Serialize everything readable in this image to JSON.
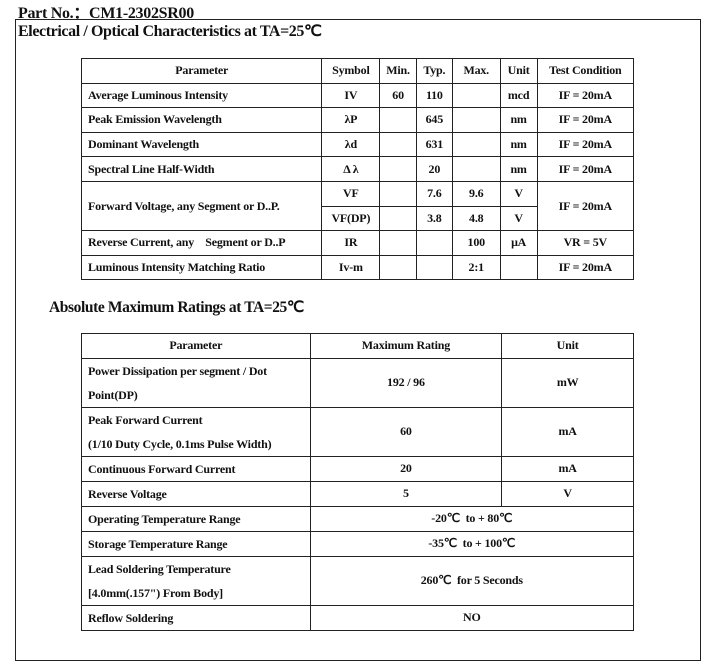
{
  "part_no": "Part No.：CM1-2302SR00",
  "electrical": {
    "title": "Electrical / Optical Characteristics at TA=25℃",
    "headers": [
      "Parameter",
      "Symbol",
      "Min.",
      "Typ.",
      "Max.",
      "Unit",
      "Test Condition"
    ],
    "rows": [
      {
        "parameter": "Average Luminous Intensity",
        "symbol": "IV",
        "min": "60",
        "typ": "110",
        "max": "",
        "unit": "mcd",
        "condition": "IF = 20mA"
      },
      {
        "parameter": "Peak Emission Wavelength",
        "symbol": "λP",
        "min": "",
        "typ": "645",
        "max": "",
        "unit": "nm",
        "condition": "IF = 20mA"
      },
      {
        "parameter": "Dominant Wavelength",
        "symbol": "λd",
        "min": "",
        "typ": "631",
        "max": "",
        "unit": "nm",
        "condition": "IF = 20mA"
      },
      {
        "parameter": "Spectral Line Half-Width",
        "symbol": "Δ λ",
        "min": "",
        "typ": "20",
        "max": "",
        "unit": "nm",
        "condition": "IF = 20mA"
      }
    ],
    "forward": {
      "parameter": "Forward Voltage, any Segment or D..P.",
      "condition": "IF = 20mA",
      "sub": [
        {
          "symbol": "VF",
          "min": "",
          "typ": "7.6",
          "max": "9.6",
          "unit": "V"
        },
        {
          "symbol": "VF(DP)",
          "min": "",
          "typ": "3.8",
          "max": "4.8",
          "unit": "V"
        }
      ]
    },
    "rows2": [
      {
        "parameter": "Reverse Current, any    Segment or D..P",
        "symbol": "IR",
        "min": "",
        "typ": "",
        "max": "100",
        "unit": "μA",
        "condition": "VR = 5V"
      },
      {
        "parameter": "Luminous Intensity Matching Ratio",
        "symbol": "Iv-m",
        "min": "",
        "typ": "",
        "max": "2:1",
        "unit": "",
        "condition": "IF = 20mA"
      }
    ]
  },
  "absolute": {
    "title": "Absolute Maximum Ratings at TA=25℃",
    "headers": [
      "Parameter",
      "Maximum Rating",
      "Unit"
    ],
    "rows": [
      {
        "parameter": "Power Dissipation per segment / Dot Point(DP)",
        "rating": "192 / 96",
        "unit": "mW"
      },
      {
        "parameter": "Peak Forward Current",
        "parameter2": "(1/10 Duty Cycle, 0.1ms Pulse Width)",
        "rating": "60",
        "unit": "mA"
      },
      {
        "parameter": "Continuous Forward Current",
        "rating": "20",
        "unit": "mA"
      },
      {
        "parameter": "Reverse Voltage",
        "rating": "5",
        "unit": "V"
      },
      {
        "parameter": "Operating Temperature Range",
        "rating": "-20℃  to + 80℃"
      },
      {
        "parameter": "Storage Temperature Range",
        "rating": "-35℃  to + 100℃"
      },
      {
        "parameter": "Lead Soldering Temperature",
        "parameter2": "[4.0mm(.157\") From Body]",
        "rating": "260℃  for 5 Seconds"
      },
      {
        "parameter": "Reflow Soldering",
        "rating": "NO"
      }
    ]
  }
}
